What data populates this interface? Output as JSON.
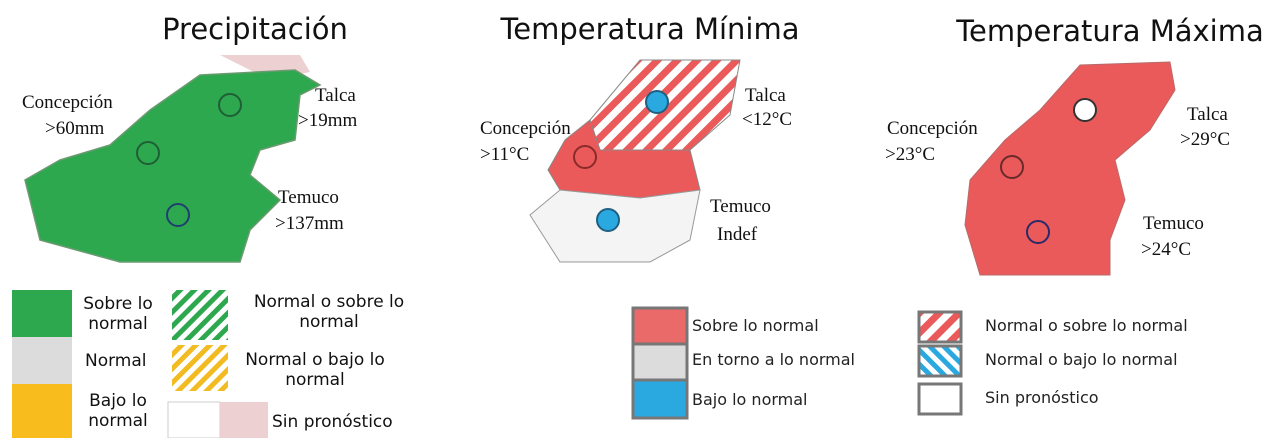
{
  "maps": [
    {
      "title": "Precipitación",
      "cities": [
        {
          "name": "Concepción",
          "value": ">60mm"
        },
        {
          "name": "Talca",
          "value": ">19mm"
        },
        {
          "name": "Temuco",
          "value": ">137mm"
        }
      ]
    },
    {
      "title": "Temperatura Mínima",
      "cities": [
        {
          "name": "Concepción",
          "value": ">11°C"
        },
        {
          "name": "Talca",
          "value": "<12°C"
        },
        {
          "name": "Temuco",
          "value": "Indef"
        }
      ]
    },
    {
      "title": "Temperatura Máxima",
      "cities": [
        {
          "name": "Concepción",
          "value": ">23°C"
        },
        {
          "name": "Talca",
          "value": ">29°C"
        },
        {
          "name": "Temuco",
          "value": ">24°C"
        }
      ]
    }
  ],
  "legend_precipitation": {
    "items": [
      "Sobre lo normal",
      "Normal",
      "Bajo lo normal",
      "Normal o sobre lo normal",
      "Normal o bajo lo normal",
      "Sin pronóstico"
    ]
  },
  "legend_temperature": {
    "items": [
      "Sobre lo normal",
      "En torno a lo normal",
      "Bajo lo normal",
      "Normal o sobre lo normal",
      "Normal o bajo lo normal",
      "Sin pronóstico"
    ]
  }
}
